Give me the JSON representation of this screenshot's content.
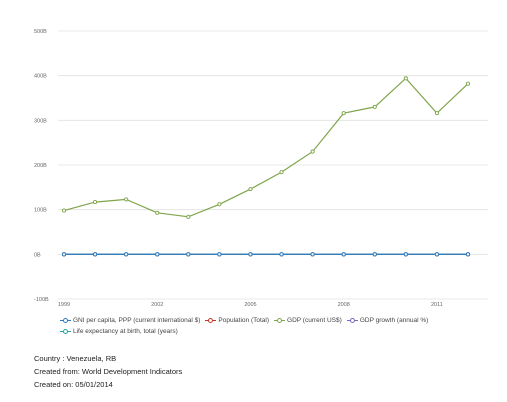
{
  "chart_data": {
    "type": "line",
    "x": [
      "1999",
      "2000",
      "2001",
      "2002",
      "2003",
      "2004",
      "2005",
      "2006",
      "2007",
      "2008",
      "2009",
      "2010",
      "2011",
      "2012"
    ],
    "x_tick_labels": [
      "1999",
      "2002",
      "2005",
      "2008",
      "2011"
    ],
    "y_tick_labels": [
      "500B",
      "400B",
      "300B",
      "200B",
      "100B",
      "0B",
      "-100B"
    ],
    "ylim": [
      -100,
      500
    ],
    "y_unit": "billions",
    "grid": true,
    "legend_position": "bottom",
    "series": [
      {
        "name": "GNI per capita, PPP (current international $)",
        "color": "#2f7bbf",
        "values": [
          0,
          0,
          0,
          0,
          0,
          0,
          0,
          0,
          0,
          0,
          0,
          0,
          0,
          0
        ]
      },
      {
        "name": "Population (Total)",
        "color": "#c0392b",
        "values": [
          0,
          0,
          0,
          0,
          0,
          0,
          0,
          0,
          0,
          0,
          0,
          0,
          0,
          0
        ]
      },
      {
        "name": "GDP (current US$)",
        "color": "#7fa54a",
        "values": [
          98,
          117,
          123,
          93,
          84,
          112,
          146,
          184,
          230,
          316,
          330,
          394,
          316,
          382
        ]
      },
      {
        "name": "GDP growth (annual %)",
        "color": "#7b68c4",
        "values": [
          0,
          0,
          0,
          0,
          0,
          0,
          0,
          0,
          0,
          0,
          0,
          0,
          0,
          0
        ]
      },
      {
        "name": "Life expectancy at birth, total (years)",
        "color": "#2aa5a0",
        "values": [
          0,
          0,
          0,
          0,
          0,
          0,
          0,
          0,
          0,
          0,
          0,
          0,
          0,
          0
        ]
      }
    ]
  },
  "footer": {
    "country": "Country : Venezuela, RB",
    "source": "Created from: World Development Indicators",
    "created": "Created on: 05/01/2014"
  }
}
